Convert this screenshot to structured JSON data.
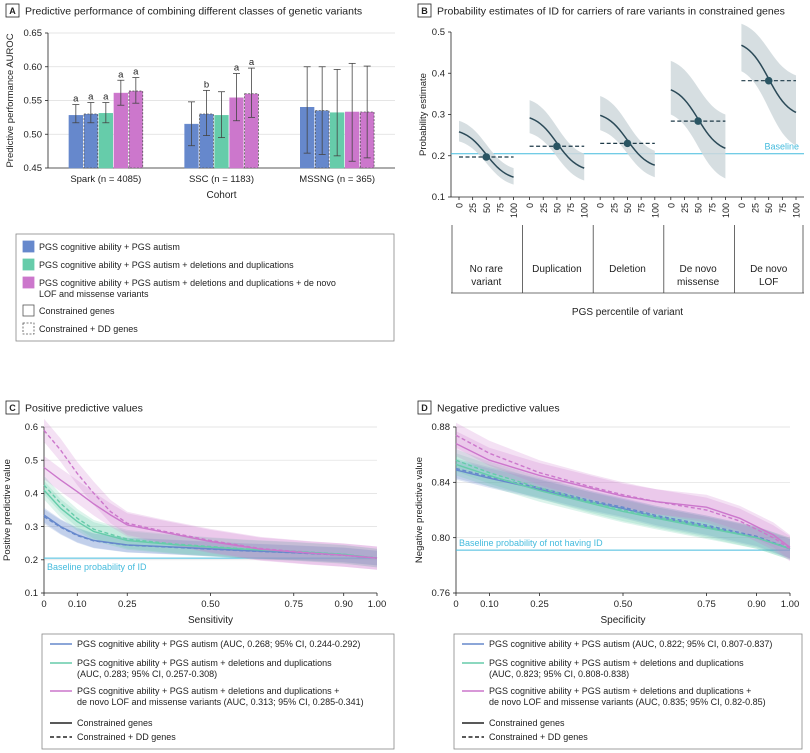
{
  "colors": {
    "blue": "#6688cc",
    "green": "#66ccaa",
    "purple": "#cc77cc",
    "baseline": "#44bbdd",
    "slate": "#2b4a58",
    "band": "#cfd8dc",
    "axis": "#222222",
    "grid": "#dddddd"
  },
  "chart_data": [
    {
      "panel": "A",
      "type": "bar",
      "title": "Predictive performance of combining different classes of genetic variants",
      "xlabel": "Cohort",
      "ylabel": "Predictive performance AUROC",
      "ylim": [
        0.45,
        0.65
      ],
      "yticks": [
        "0.45",
        "0.50",
        "0.55",
        "0.60",
        "0.65"
      ],
      "categories": [
        "Spark (n = 4085)",
        "SSC (n = 1183)",
        "MSSNG (n = 365)"
      ],
      "series": [
        {
          "name": "PGS cognitive ability + PGS autism",
          "color": "blue",
          "gene_set": "Constrained genes",
          "values": [
            0.528,
            0.515,
            0.54
          ],
          "ci_low": [
            0.517,
            0.483,
            0.472
          ],
          "ci_high": [
            0.544,
            0.548,
            0.6
          ],
          "sig": [
            "a",
            "",
            ""
          ]
        },
        {
          "name": "PGS cognitive ability + PGS autism",
          "color": "blue",
          "gene_set": "Constrained + DD genes",
          "values": [
            0.53,
            0.53,
            0.535
          ],
          "ci_low": [
            0.517,
            0.498,
            0.47
          ],
          "ci_high": [
            0.547,
            0.565,
            0.6
          ],
          "sig": [
            "a",
            "b",
            ""
          ]
        },
        {
          "name": "PGS cognitive ability + PGS autism + deletions and duplications",
          "color": "green",
          "gene_set": "Constrained genes",
          "values": [
            0.531,
            0.528,
            0.532
          ],
          "ci_low": [
            0.517,
            0.495,
            0.468
          ],
          "ci_high": [
            0.547,
            0.563,
            0.596
          ],
          "sig": [
            "a",
            "",
            ""
          ]
        },
        {
          "name": "PGS cognitive ability + PGS autism + deletions and duplications + de novo LOF and missense variants",
          "color": "purple",
          "gene_set": "Constrained genes",
          "values": [
            0.561,
            0.554,
            0.533
          ],
          "ci_low": [
            0.543,
            0.52,
            0.46
          ],
          "ci_high": [
            0.58,
            0.59,
            0.605
          ],
          "sig": [
            "a",
            "a",
            ""
          ]
        },
        {
          "name": "PGS cognitive ability + PGS autism + deletions and duplications + de novo LOF and missense variants",
          "color": "purple",
          "gene_set": "Constrained + DD genes",
          "values": [
            0.564,
            0.56,
            0.533
          ],
          "ci_low": [
            0.546,
            0.525,
            0.465
          ],
          "ci_high": [
            0.584,
            0.598,
            0.601
          ],
          "sig": [
            "a",
            "a",
            ""
          ]
        }
      ],
      "legend": [
        {
          "label": "PGS cognitive ability + PGS autism",
          "color": "blue",
          "style": "solid"
        },
        {
          "label": "PGS cognitive ability + PGS autism + deletions and duplications",
          "color": "green",
          "style": "solid"
        },
        {
          "label": "PGS cognitive ability + PGS autism + deletions and duplications + de novo LOF and missense variants",
          "color": "purple",
          "style": "solid"
        },
        {
          "label": "Constrained genes",
          "color": "none",
          "style": "solid"
        },
        {
          "label": "Constrained + DD genes",
          "color": "none",
          "style": "dashed"
        }
      ]
    },
    {
      "panel": "B",
      "type": "line",
      "title": "Probability estimates of ID for carriers of rare variants in constrained genes",
      "xlabel": "PGS percentile of variant",
      "ylabel": "Probability estimate",
      "ylim": [
        0.1,
        0.5
      ],
      "yticks": [
        "0.1",
        "0.2",
        "0.3",
        "0.4",
        "0.5"
      ],
      "xticks": [
        "0",
        "25",
        "50",
        "75",
        "100"
      ],
      "baseline": 0.205,
      "baseline_label": "Baseline",
      "groups": [
        {
          "label": "No rare variant",
          "mean": 0.197,
          "p0": 0.258,
          "p100": 0.148,
          "lo0": 0.235,
          "hi0": 0.285,
          "lo100": 0.13,
          "hi100": 0.17
        },
        {
          "label": "Duplication",
          "mean": 0.223,
          "p0": 0.292,
          "p100": 0.17,
          "lo0": 0.255,
          "hi0": 0.335,
          "lo100": 0.14,
          "hi100": 0.205
        },
        {
          "label": "Deletion",
          "mean": 0.23,
          "p0": 0.298,
          "p100": 0.177,
          "lo0": 0.262,
          "hi0": 0.345,
          "lo100": 0.148,
          "hi100": 0.212
        },
        {
          "label": "De novo missense",
          "mean": 0.284,
          "p0": 0.36,
          "p100": 0.218,
          "lo0": 0.3,
          "hi0": 0.43,
          "lo100": 0.145,
          "hi100": 0.3
        },
        {
          "label": "De novo LOF",
          "mean": 0.382,
          "p0": 0.468,
          "p100": 0.305,
          "lo0": 0.405,
          "hi0": 0.52,
          "lo100": 0.225,
          "hi100": 0.395
        }
      ]
    },
    {
      "panel": "C",
      "type": "line",
      "title": "Positive predictive values",
      "xlabel": "Sensitivity",
      "ylabel": "Positive predictive value",
      "xlim": [
        0,
        1
      ],
      "ylim": [
        0.1,
        0.6
      ],
      "xticks": [
        "0",
        "0.10",
        "0.25",
        "0.50",
        "0.75",
        "0.90",
        "1.00"
      ],
      "xtick_values": [
        0,
        0.1,
        0.25,
        0.5,
        0.75,
        0.9,
        1.0
      ],
      "yticks": [
        "0.1",
        "0.2",
        "0.3",
        "0.4",
        "0.5",
        "0.6"
      ],
      "baseline": 0.205,
      "baseline_label": "Baseline probability of ID",
      "series": [
        {
          "name": "PGS cognitive ability + PGS autism",
          "color": "blue",
          "band": 0.022,
          "solid": [
            [
              0,
              0.335
            ],
            [
              0.05,
              0.3
            ],
            [
              0.1,
              0.275
            ],
            [
              0.15,
              0.258
            ],
            [
              0.25,
              0.245
            ],
            [
              0.4,
              0.238
            ],
            [
              0.5,
              0.233
            ],
            [
              0.6,
              0.228
            ],
            [
              0.75,
              0.222
            ],
            [
              0.9,
              0.215
            ],
            [
              1.0,
              0.205
            ]
          ],
          "dashed": [
            [
              0,
              0.33
            ],
            [
              0.05,
              0.298
            ],
            [
              0.1,
              0.273
            ],
            [
              0.15,
              0.257
            ],
            [
              0.25,
              0.244
            ],
            [
              0.4,
              0.237
            ],
            [
              0.5,
              0.232
            ],
            [
              0.6,
              0.227
            ],
            [
              0.75,
              0.221
            ],
            [
              0.9,
              0.214
            ],
            [
              1.0,
              0.205
            ]
          ]
        },
        {
          "name": "PGS cognitive ability + PGS autism + deletions and duplications",
          "color": "green",
          "band": 0.028,
          "solid": [
            [
              0,
              0.41
            ],
            [
              0.05,
              0.355
            ],
            [
              0.1,
              0.315
            ],
            [
              0.15,
              0.285
            ],
            [
              0.25,
              0.258
            ],
            [
              0.4,
              0.245
            ],
            [
              0.5,
              0.238
            ],
            [
              0.6,
              0.232
            ],
            [
              0.75,
              0.225
            ],
            [
              0.9,
              0.216
            ],
            [
              1.0,
              0.205
            ]
          ],
          "dashed": [
            [
              0,
              0.425
            ],
            [
              0.05,
              0.37
            ],
            [
              0.1,
              0.325
            ],
            [
              0.15,
              0.292
            ],
            [
              0.25,
              0.262
            ],
            [
              0.4,
              0.247
            ],
            [
              0.5,
              0.24
            ],
            [
              0.6,
              0.233
            ],
            [
              0.75,
              0.226
            ],
            [
              0.9,
              0.217
            ],
            [
              1.0,
              0.205
            ]
          ]
        },
        {
          "name": "PGS cognitive ability + PGS autism + deletions and duplications + de novo LOF and missense variants",
          "color": "purple",
          "band": 0.035,
          "solid": [
            [
              0,
              0.478
            ],
            [
              0.05,
              0.44
            ],
            [
              0.1,
              0.405
            ],
            [
              0.15,
              0.368
            ],
            [
              0.2,
              0.335
            ],
            [
              0.25,
              0.305
            ],
            [
              0.35,
              0.285
            ],
            [
              0.5,
              0.255
            ],
            [
              0.65,
              0.232
            ],
            [
              0.8,
              0.22
            ],
            [
              0.9,
              0.214
            ],
            [
              1.0,
              0.205
            ]
          ],
          "dashed": [
            [
              0,
              0.59
            ],
            [
              0.05,
              0.53
            ],
            [
              0.1,
              0.46
            ],
            [
              0.15,
              0.4
            ],
            [
              0.2,
              0.345
            ],
            [
              0.25,
              0.31
            ],
            [
              0.35,
              0.288
            ],
            [
              0.5,
              0.258
            ],
            [
              0.65,
              0.234
            ],
            [
              0.8,
              0.221
            ],
            [
              0.9,
              0.214
            ],
            [
              1.0,
              0.205
            ]
          ]
        }
      ],
      "legend": [
        {
          "label": "PGS cognitive ability + PGS autism (AUC, 0.268; 95% CI, 0.244-0.292)",
          "color": "blue",
          "style": "solid"
        },
        {
          "label": "PGS cognitive ability + PGS autism + deletions and duplications",
          "label2": "(AUC, 0.283; 95% CI, 0.257-0.308)",
          "color": "green",
          "style": "solid"
        },
        {
          "label": "PGS cognitive ability + PGS autism + deletions and duplications +",
          "label2": "de novo LOF and missense variants (AUC, 0.313; 95% CI, 0.285-0.341)",
          "color": "purple",
          "style": "solid"
        },
        {
          "label": "Constrained genes",
          "color": "black",
          "style": "solid"
        },
        {
          "label": "Constrained + DD genes",
          "color": "black",
          "style": "dashed"
        }
      ]
    },
    {
      "panel": "D",
      "type": "line",
      "title": "Negative predictive values",
      "xlabel": "Specificity",
      "ylabel": "Negative predictive value",
      "xlim": [
        0,
        1
      ],
      "ylim": [
        0.76,
        0.88
      ],
      "xticks": [
        "0",
        "0.10",
        "0.25",
        "0.50",
        "0.75",
        "0.90",
        "1.00"
      ],
      "xtick_values": [
        0,
        0.1,
        0.25,
        0.5,
        0.75,
        0.9,
        1.0
      ],
      "yticks": [
        "0.76",
        "0.80",
        "0.84",
        "0.88"
      ],
      "ytick_values": [
        0.76,
        0.8,
        0.84,
        0.88
      ],
      "baseline": 0.791,
      "baseline_label": "Baseline probability of not having ID",
      "series": [
        {
          "name": "PGS cognitive ability + PGS autism",
          "color": "blue",
          "band": 0.007,
          "solid": [
            [
              0,
              0.849
            ],
            [
              0.1,
              0.843
            ],
            [
              0.25,
              0.835
            ],
            [
              0.4,
              0.826
            ],
            [
              0.5,
              0.821
            ],
            [
              0.6,
              0.815
            ],
            [
              0.75,
              0.808
            ],
            [
              0.9,
              0.8
            ],
            [
              1.0,
              0.792
            ]
          ],
          "dashed": [
            [
              0,
              0.85
            ],
            [
              0.1,
              0.844
            ],
            [
              0.25,
              0.836
            ],
            [
              0.4,
              0.827
            ],
            [
              0.5,
              0.822
            ],
            [
              0.6,
              0.816
            ],
            [
              0.75,
              0.809
            ],
            [
              0.9,
              0.801
            ],
            [
              1.0,
              0.792
            ]
          ]
        },
        {
          "name": "PGS cognitive ability + PGS autism + deletions and duplications",
          "color": "green",
          "band": 0.008,
          "solid": [
            [
              0,
              0.853
            ],
            [
              0.1,
              0.845
            ],
            [
              0.25,
              0.834
            ],
            [
              0.4,
              0.825
            ],
            [
              0.5,
              0.819
            ],
            [
              0.6,
              0.814
            ],
            [
              0.75,
              0.807
            ],
            [
              0.9,
              0.8
            ],
            [
              1.0,
              0.792
            ]
          ],
          "dashed": [
            [
              0,
              0.856
            ],
            [
              0.1,
              0.847
            ],
            [
              0.25,
              0.836
            ],
            [
              0.4,
              0.826
            ],
            [
              0.5,
              0.82
            ],
            [
              0.6,
              0.815
            ],
            [
              0.75,
              0.808
            ],
            [
              0.9,
              0.8
            ],
            [
              1.0,
              0.792
            ]
          ]
        },
        {
          "name": "PGS cognitive ability + PGS autism + deletions and duplications + de novo LOF and missense variants",
          "color": "purple",
          "band": 0.009,
          "solid": [
            [
              0,
              0.868
            ],
            [
              0.1,
              0.856
            ],
            [
              0.25,
              0.845
            ],
            [
              0.4,
              0.836
            ],
            [
              0.5,
              0.83
            ],
            [
              0.6,
              0.826
            ],
            [
              0.75,
              0.822
            ],
            [
              0.85,
              0.814
            ],
            [
              0.95,
              0.802
            ],
            [
              1.0,
              0.793
            ]
          ],
          "dashed": [
            [
              0,
              0.874
            ],
            [
              0.1,
              0.861
            ],
            [
              0.25,
              0.847
            ],
            [
              0.4,
              0.837
            ],
            [
              0.5,
              0.831
            ],
            [
              0.6,
              0.826
            ],
            [
              0.75,
              0.82
            ],
            [
              0.85,
              0.812
            ],
            [
              0.95,
              0.8
            ],
            [
              1.0,
              0.792
            ]
          ]
        }
      ],
      "legend": [
        {
          "label": "PGS cognitive ability + PGS autism (AUC, 0.822; 95% CI, 0.807-0.837)",
          "color": "blue",
          "style": "solid"
        },
        {
          "label": "PGS cognitive ability + PGS autism + deletions and duplications",
          "label2": "(AUC, 0.823; 95% CI, 0.808-0.838)",
          "color": "green",
          "style": "solid"
        },
        {
          "label": "PGS cognitive ability + PGS autism + deletions and duplications +",
          "label2": "de novo LOF and missense variants (AUC, 0.835; 95% CI, 0.82-0.85)",
          "color": "purple",
          "style": "solid"
        },
        {
          "label": "Constrained genes",
          "color": "black",
          "style": "solid"
        },
        {
          "label": "Constrained + DD genes",
          "color": "black",
          "style": "dashed"
        }
      ]
    }
  ]
}
